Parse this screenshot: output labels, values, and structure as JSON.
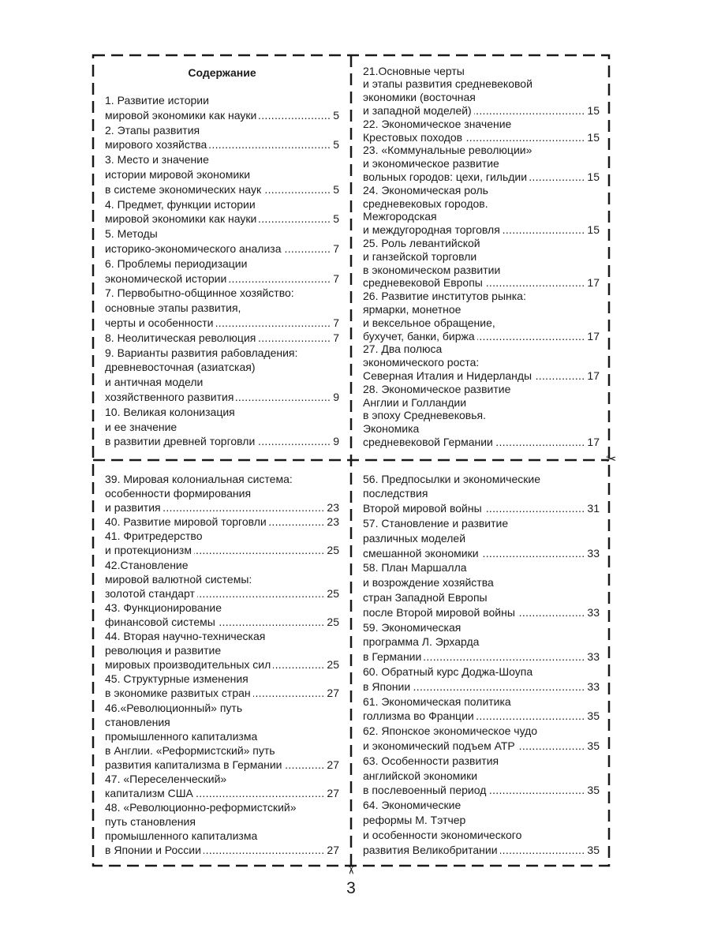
{
  "title": "Содержание",
  "page_number": "3",
  "quadrants": {
    "top_left": [
      {
        "lines": [
          "1. Развитие истории",
          "мировой экономики как науки"
        ],
        "page": "5"
      },
      {
        "lines": [
          "2. Этапы развития",
          "мирового хозяйства"
        ],
        "page": "5"
      },
      {
        "lines": [
          "3. Место и значение",
          "истории мировой экономики",
          "в системе экономических наук"
        ],
        "page": "5"
      },
      {
        "lines": [
          "4. Предмет, функции истории",
          "мировой экономики как науки"
        ],
        "page": "5"
      },
      {
        "lines": [
          "5. Методы",
          "историко-экономического анализа"
        ],
        "page": "7"
      },
      {
        "lines": [
          "6. Проблемы периодизации",
          "экономической истории"
        ],
        "page": "7"
      },
      {
        "lines": [
          "7. Первобытно-общинное хозяйство:",
          "основные этапы развития,",
          "черты и особенности"
        ],
        "page": "7"
      },
      {
        "lines": [
          "8. Неолитическая революция"
        ],
        "page": "7"
      },
      {
        "lines": [
          "9. Варианты развития рабовладения:",
          "древневосточная (азиатская)",
          "и античная модели",
          "хозяйственного развития"
        ],
        "page": "9"
      },
      {
        "lines": [
          "10. Великая колонизация",
          "и ее значение",
          "в развитии древней торговли"
        ],
        "page": "9"
      }
    ],
    "top_right": [
      {
        "lines": [
          "21.Основные черты",
          "и этапы развития средневековой",
          "экономики (восточная",
          "и западной моделей)"
        ],
        "page": "15"
      },
      {
        "lines": [
          "22. Экономическое значение",
          "Крестовых походов"
        ],
        "page": "15"
      },
      {
        "lines": [
          "23. «Коммунальные революции»",
          "и экономическое развитие",
          "вольных городов: цехи, гильдии"
        ],
        "page": "15"
      },
      {
        "lines": [
          "24. Экономическая роль",
          "средневековых городов.",
          "Межгородская",
          "и междугородная торговля"
        ],
        "page": "15"
      },
      {
        "lines": [
          "25. Роль левантийской",
          "и ганзейской торговли",
          "в экономическом развитии",
          "средневековой Европы"
        ],
        "page": "17"
      },
      {
        "lines": [
          "26. Развитие институтов рынка:",
          "ярмарки, монетное",
          "и вексельное обращение,",
          "бухучет, банки, биржа"
        ],
        "page": "17"
      },
      {
        "lines": [
          "27. Два полюса",
          "экономического роста:",
          "Северная Италия и Нидерланды"
        ],
        "page": "17"
      },
      {
        "lines": [
          "28. Экономическое развитие",
          "Англии и Голландии",
          "в эпоху Средневековья.",
          "Экономика",
          "средневековой Германии"
        ],
        "page": "17"
      }
    ],
    "bottom_left": [
      {
        "lines": [
          "39. Мировая колониальная система:",
          "особенности формирования",
          "и развития"
        ],
        "page": "23"
      },
      {
        "lines": [
          "40. Развитие мировой торговли"
        ],
        "page": "23"
      },
      {
        "lines": [
          "41. Фритредерство",
          "и протекционизм"
        ],
        "page": "25"
      },
      {
        "lines": [
          "42.Становление",
          "мировой валютной системы:",
          "золотой стандарт"
        ],
        "page": "25"
      },
      {
        "lines": [
          "43. Функционирование",
          "финансовой системы"
        ],
        "page": "25"
      },
      {
        "lines": [
          "44. Вторая научно-техническая",
          "революция и развитие",
          "мировых производительных сил"
        ],
        "page": "25"
      },
      {
        "lines": [
          "45. Структурные изменения",
          "в экономике развитых стран"
        ],
        "page": "27"
      },
      {
        "lines": [
          "46.«Революционный» путь",
          "становления",
          "промышленного капитализма",
          "в Англии. «Реформистский» путь",
          "развития капитализма в Германии"
        ],
        "page": "27"
      },
      {
        "lines": [
          "47. «Переселенческий»",
          "капитализм США"
        ],
        "page": "27"
      },
      {
        "lines": [
          "48. «Революционно-реформистский»",
          "путь становления",
          "промышленного капитализма",
          "в Японии и России"
        ],
        "page": "27"
      }
    ],
    "bottom_right": [
      {
        "lines": [
          "56. Предпосылки и экономические",
          "последствия",
          "Второй мировой войны"
        ],
        "page": "31"
      },
      {
        "lines": [
          "57. Становление и развитие",
          "различных моделей",
          "смешанной экономики"
        ],
        "page": "33"
      },
      {
        "lines": [
          "58. План Маршалла",
          "и возрождение хозяйства",
          "стран Западной Европы",
          "после Второй мировой войны"
        ],
        "page": "33"
      },
      {
        "lines": [
          "59. Экономическая",
          "программа Л. Эрхарда",
          "в Германии"
        ],
        "page": "33"
      },
      {
        "lines": [
          "60. Обратный курс Доджа-Шоупа",
          "в Японии"
        ],
        "page": "33"
      },
      {
        "lines": [
          "61. Экономическая политика",
          "голлизма во Франции"
        ],
        "page": "35"
      },
      {
        "lines": [
          "62. Японское экономическое чудо",
          "и экономический подъем АТР"
        ],
        "page": "35"
      },
      {
        "lines": [
          "63. Особенности развития",
          "английской экономики",
          "в послевоенный период"
        ],
        "page": "35"
      },
      {
        "lines": [
          "64. Экономические",
          "реформы М. Тэтчер",
          "и особенности экономического",
          "развития Великобритании"
        ],
        "page": "35"
      }
    ]
  },
  "icons": {
    "cut_marks": "scissors-icon"
  }
}
